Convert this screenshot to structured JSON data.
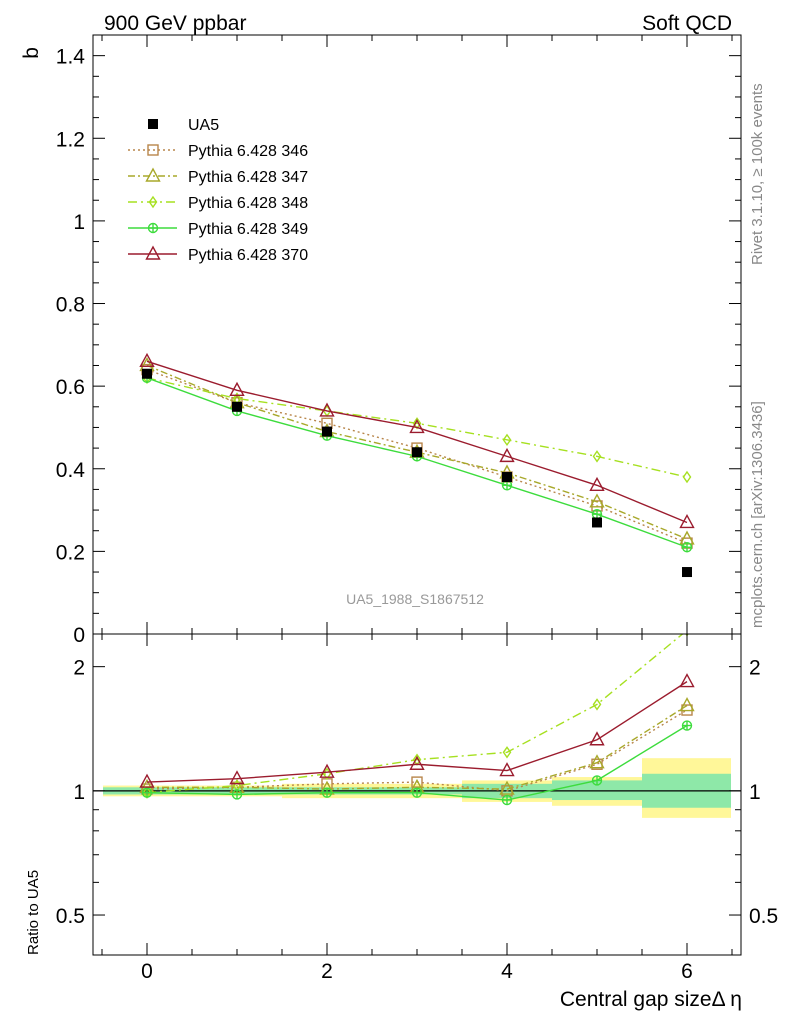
{
  "header": {
    "left_title": "900 GeV ppbar",
    "right_title": "Soft QCD"
  },
  "side_labels": {
    "rivet": "Rivet 3.1.10, ≥ 100k events",
    "mcplots": "mcplots.cern.ch [arXiv:1306.3436]"
  },
  "analysis_id": "UA5_1988_S1867512",
  "chart_data": [
    {
      "type": "line",
      "panel": "main",
      "ylabel": "b",
      "xlim": [
        -0.6,
        6.6
      ],
      "ylim": [
        0,
        1.45
      ],
      "yticks": [
        0,
        0.2,
        0.4,
        0.6,
        0.8,
        1,
        1.2,
        1.4
      ],
      "ytick_labels": [
        "0",
        "0.2",
        "0.4",
        "0.6",
        "0.8",
        "1",
        "1.2",
        "1.4"
      ],
      "x": [
        0,
        1,
        2,
        3,
        4,
        5,
        6
      ],
      "data": {
        "name": "UA5",
        "y": [
          0.63,
          0.55,
          0.49,
          0.44,
          0.38,
          0.27,
          0.15
        ],
        "yerr": [
          0.008,
          0.008,
          0.008,
          0.008,
          0.008,
          0.008,
          0.008
        ]
      },
      "series": [
        {
          "name": "Pythia 6.428 346",
          "color": "#b8864b",
          "marker": "square",
          "dash": "dotted",
          "y": [
            0.64,
            0.56,
            0.51,
            0.45,
            0.38,
            0.31,
            0.22
          ]
        },
        {
          "name": "Pythia 6.428 347",
          "color": "#a8a82a",
          "marker": "triangle",
          "dash": "dashdot",
          "y": [
            0.65,
            0.56,
            0.49,
            0.44,
            0.39,
            0.32,
            0.23
          ]
        },
        {
          "name": "Pythia 6.428 348",
          "color": "#a6e020",
          "marker": "diamond",
          "dash": "dashdot2",
          "y": [
            0.62,
            0.57,
            0.54,
            0.51,
            0.47,
            0.43,
            0.38
          ]
        },
        {
          "name": "Pythia 6.428 349",
          "color": "#3ddc3d",
          "marker": "cross",
          "dash": "solid",
          "y": [
            0.62,
            0.54,
            0.48,
            0.43,
            0.36,
            0.29,
            0.21
          ]
        },
        {
          "name": "Pythia 6.428 370",
          "color": "#9b1c2e",
          "marker": "triangle",
          "dash": "solid",
          "y": [
            0.66,
            0.59,
            0.54,
            0.5,
            0.43,
            0.36,
            0.27
          ]
        }
      ]
    },
    {
      "type": "line",
      "panel": "ratio",
      "ylabel": "Ratio to UA5",
      "xlabel": "Central gap sizeΔ η",
      "xlim": [
        -0.6,
        6.6
      ],
      "ylim": [
        0.4,
        2.4
      ],
      "log_scale_y": true,
      "xticks": [
        0,
        2,
        4,
        6
      ],
      "xtick_labels": [
        "0",
        "2",
        "4",
        "6"
      ],
      "yticks": [
        0.5,
        1,
        2
      ],
      "ytick_labels": [
        "0.5",
        "1",
        "2"
      ],
      "x": [
        0,
        1,
        2,
        3,
        4,
        5,
        6
      ],
      "band_inner": [
        [
          0.98,
          1.02
        ],
        [
          0.98,
          1.02
        ],
        [
          0.98,
          1.02
        ],
        [
          0.98,
          1.02
        ],
        [
          0.96,
          1.04
        ],
        [
          0.95,
          1.06
        ],
        [
          0.91,
          1.1
        ]
      ],
      "band_outer": [
        [
          0.97,
          1.03
        ],
        [
          0.97,
          1.03
        ],
        [
          0.96,
          1.04
        ],
        [
          0.96,
          1.04
        ],
        [
          0.94,
          1.06
        ],
        [
          0.92,
          1.08
        ],
        [
          0.86,
          1.2
        ]
      ],
      "series": [
        {
          "name": "Pythia 6.428 346",
          "y": [
            1.01,
            1.02,
            1.04,
            1.05,
            1.0,
            1.16,
            1.57
          ]
        },
        {
          "name": "Pythia 6.428 347",
          "y": [
            1.02,
            1.02,
            1.01,
            1.02,
            1.01,
            1.17,
            1.61
          ]
        },
        {
          "name": "Pythia 6.428 348",
          "y": [
            0.99,
            1.03,
            1.1,
            1.19,
            1.24,
            1.62,
            2.45
          ]
        },
        {
          "name": "Pythia 6.428 349",
          "y": [
            0.99,
            0.98,
            0.99,
            0.99,
            0.95,
            1.06,
            1.44
          ]
        },
        {
          "name": "Pythia 6.428 370",
          "y": [
            1.05,
            1.07,
            1.11,
            1.16,
            1.12,
            1.33,
            1.84
          ]
        }
      ]
    }
  ]
}
